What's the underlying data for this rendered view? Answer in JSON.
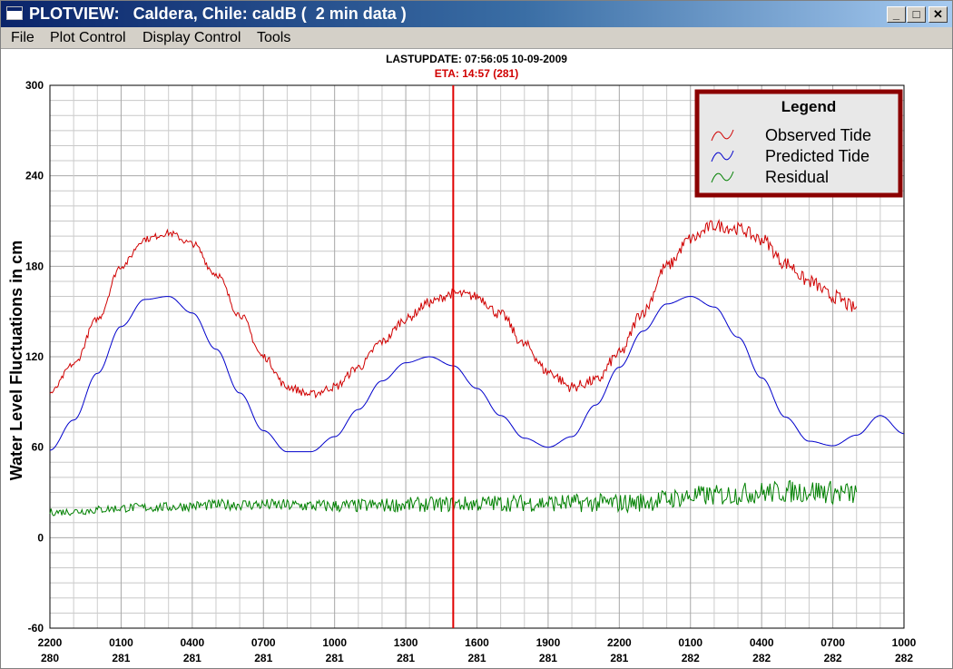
{
  "window": {
    "title": "PLOTVIEW:   Caldera, Chile: caldB (  2 min data )",
    "minimize_label": "_",
    "maximize_label": "□",
    "close_label": "✕"
  },
  "menu": [
    "File",
    "Plot Control",
    "Display Control",
    "Tools"
  ],
  "header": {
    "last_update": "LASTUPDATE: 07:56:05  10-09-2009",
    "eta": "ETA: 14:57 (281)"
  },
  "colors": {
    "observed": "#d00000",
    "predicted": "#0000cc",
    "residual": "#008000",
    "eta_line": "#e00000",
    "legend_border": "#8b0000"
  },
  "chart_data": {
    "type": "line",
    "ylabel": "Water Level Fluctuations in cm",
    "ylim": [
      -60,
      300
    ],
    "y_ticks": [
      300,
      240,
      180,
      120,
      60,
      0,
      -60
    ],
    "x_ticks": [
      {
        "time": "2200",
        "day": "280"
      },
      {
        "time": "0100",
        "day": "281"
      },
      {
        "time": "0400",
        "day": "281"
      },
      {
        "time": "0700",
        "day": "281"
      },
      {
        "time": "1000",
        "day": "281"
      },
      {
        "time": "1300",
        "day": "281"
      },
      {
        "time": "1600",
        "day": "281"
      },
      {
        "time": "1900",
        "day": "281"
      },
      {
        "time": "2200",
        "day": "281"
      },
      {
        "time": "0100",
        "day": "282"
      },
      {
        "time": "0400",
        "day": "282"
      },
      {
        "time": "0700",
        "day": "282"
      },
      {
        "time": "1000",
        "day": "282"
      }
    ],
    "eta_x_hour": 17.0,
    "grid": true,
    "legend": {
      "title": "Legend",
      "placement": "top-right",
      "entries": [
        "Observed Tide",
        "Predicted Tide",
        "Residual"
      ]
    },
    "series": [
      {
        "name": "Predicted Tide",
        "x_hours": [
          0,
          1,
          2,
          3,
          4,
          5,
          6,
          7,
          8,
          9,
          10,
          11,
          12,
          13,
          14,
          15,
          16,
          17,
          18,
          19,
          20,
          21,
          22,
          23,
          24,
          25,
          26,
          27,
          28,
          29,
          30,
          31,
          32,
          33,
          34,
          35,
          36
        ],
        "values": [
          58,
          78,
          109,
          140,
          158,
          160,
          149,
          125,
          96,
          71,
          57,
          57,
          67,
          85,
          104,
          116,
          120,
          114,
          99,
          81,
          66,
          60,
          67,
          88,
          113,
          137,
          155,
          160,
          153,
          133,
          106,
          80,
          64,
          61,
          68,
          81,
          69
        ]
      },
      {
        "name": "Observed Tide",
        "x_hours": [
          0,
          1,
          2,
          3,
          4,
          5,
          6,
          7,
          8,
          9,
          10,
          11,
          12,
          13,
          14,
          15,
          16,
          17,
          18,
          19,
          20,
          21,
          22,
          23,
          24,
          25,
          26,
          27,
          28,
          29,
          30,
          31,
          32,
          33,
          34
        ],
        "values": [
          96,
          115,
          145,
          180,
          198,
          202,
          195,
          175,
          148,
          120,
          100,
          95,
          100,
          113,
          130,
          145,
          156,
          162,
          160,
          148,
          128,
          110,
          100,
          104,
          122,
          150,
          180,
          198,
          207,
          205,
          198,
          182,
          170,
          160,
          152
        ]
      },
      {
        "name": "Residual",
        "x_hours": [
          0,
          4,
          8,
          12,
          16,
          20,
          24,
          28,
          30,
          32,
          34
        ],
        "values": [
          17,
          20,
          22,
          21,
          22,
          23,
          23,
          28,
          30,
          31,
          29
        ]
      }
    ]
  }
}
